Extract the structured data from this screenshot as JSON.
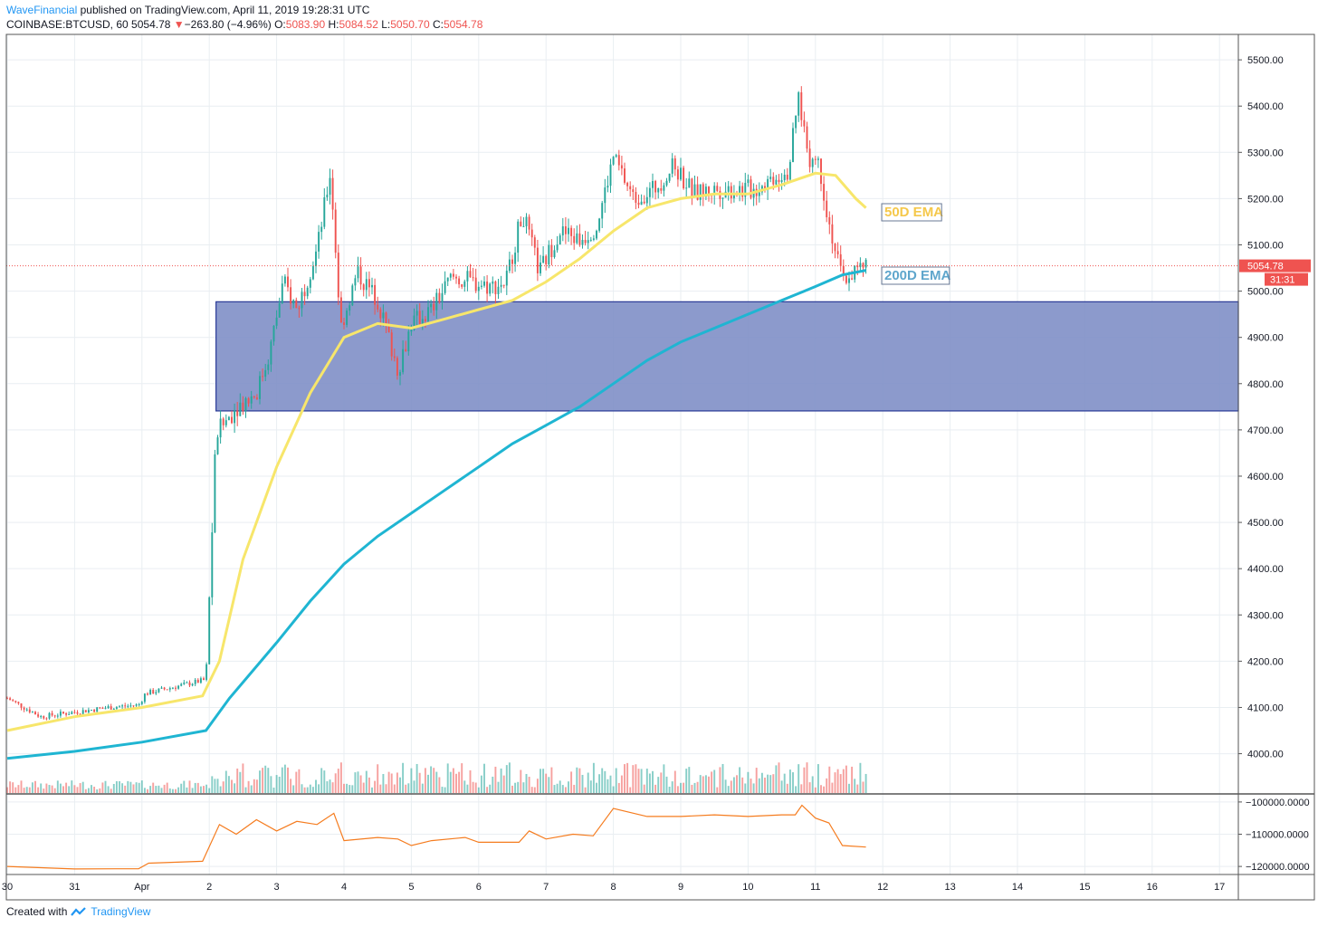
{
  "header": {
    "author": "WaveFinancial",
    "published_text": "published on TradingView.com, April 11, 2019 19:28:31 UTC",
    "symbol": "COINBASE:BTCUSD, 60",
    "last": "5054.78",
    "arrow": "▼",
    "change": "−263.80 (−4.96%)",
    "o_label": "O:",
    "o_value": "5083.90",
    "h_label": "H:",
    "h_value": "5084.52",
    "l_label": "L:",
    "l_value": "5050.70",
    "c_label": "C:",
    "c_value": "5054.78"
  },
  "footer": {
    "created_with": "Created with",
    "brand": "TradingView"
  },
  "colors": {
    "up": "#26a69a",
    "down": "#ef5350",
    "ema50": "#f7e66b",
    "ema200": "#1fb5d2",
    "zone_fill": "#7f8fc6",
    "zone_stroke": "#2a3a96",
    "indicator": "#f57c1f",
    "grid": "#e9eef2",
    "price_line": "#ef5350"
  },
  "chart_data": {
    "type": "candlestick",
    "symbol": "COINBASE:BTCUSD",
    "interval": "60",
    "price_axis": {
      "ticks": [
        5500,
        5400,
        5300,
        5200,
        5100,
        5000,
        4900,
        4800,
        4700,
        4600,
        4500,
        4400,
        4300,
        4200,
        4100,
        4000
      ],
      "tick_labels": [
        "5500.00",
        "5400.00",
        "5300.00",
        "5200.00",
        "5100.00",
        "5000.00",
        "4900.00",
        "4800.00",
        "4700.00",
        "4600.00",
        "4500.00",
        "4400.00",
        "4300.00",
        "4200.00",
        "4100.00",
        "4000.00"
      ],
      "range": [
        3915,
        5555
      ]
    },
    "time_axis": {
      "labels": [
        "30",
        "31",
        "Apr",
        "2",
        "3",
        "4",
        "5",
        "6",
        "7",
        "8",
        "9",
        "10",
        "11",
        "12",
        "13",
        "14",
        "15",
        "16",
        "17"
      ],
      "day_index": [
        0,
        1,
        2,
        3,
        4,
        5,
        6,
        7,
        8,
        9,
        10,
        11,
        12,
        13,
        14,
        15,
        16,
        17,
        18
      ],
      "range": [
        0,
        18.8
      ]
    },
    "close_path": [
      [
        0.0,
        4120
      ],
      [
        0.5,
        4080
      ],
      [
        1.0,
        4090
      ],
      [
        1.5,
        4100
      ],
      [
        1.95,
        4105
      ],
      [
        2.05,
        4130
      ],
      [
        2.5,
        4145
      ],
      [
        2.95,
        4160
      ],
      [
        3.1,
        4690
      ],
      [
        3.4,
        4750
      ],
      [
        3.7,
        4780
      ],
      [
        3.9,
        4870
      ],
      [
        4.1,
        5020
      ],
      [
        4.3,
        4960
      ],
      [
        4.6,
        5090
      ],
      [
        4.8,
        5260
      ],
      [
        4.95,
        4920
      ],
      [
        5.2,
        5040
      ],
      [
        5.5,
        4980
      ],
      [
        5.8,
        4830
      ],
      [
        6.0,
        4930
      ],
      [
        6.3,
        4960
      ],
      [
        6.6,
        5030
      ],
      [
        6.9,
        5020
      ],
      [
        7.2,
        5010
      ],
      [
        7.4,
        5020
      ],
      [
        7.65,
        5170
      ],
      [
        7.9,
        5040
      ],
      [
        8.2,
        5130
      ],
      [
        8.5,
        5110
      ],
      [
        8.75,
        5140
      ],
      [
        9.0,
        5290
      ],
      [
        9.3,
        5200
      ],
      [
        9.6,
        5220
      ],
      [
        9.9,
        5270
      ],
      [
        10.2,
        5210
      ],
      [
        10.5,
        5220
      ],
      [
        10.8,
        5220
      ],
      [
        11.1,
        5220
      ],
      [
        11.4,
        5250
      ],
      [
        11.6,
        5260
      ],
      [
        11.75,
        5420
      ],
      [
        11.9,
        5290
      ],
      [
        12.05,
        5280
      ],
      [
        12.2,
        5150
      ],
      [
        12.4,
        5020
      ],
      [
        12.55,
        5040
      ],
      [
        12.75,
        5055
      ]
    ],
    "ema50": [
      [
        0.0,
        4050
      ],
      [
        1.0,
        4080
      ],
      [
        2.0,
        4100
      ],
      [
        2.9,
        4125
      ],
      [
        3.15,
        4200
      ],
      [
        3.5,
        4420
      ],
      [
        4.0,
        4620
      ],
      [
        4.5,
        4780
      ],
      [
        5.0,
        4900
      ],
      [
        5.5,
        4930
      ],
      [
        6.0,
        4920
      ],
      [
        6.5,
        4940
      ],
      [
        7.0,
        4960
      ],
      [
        7.5,
        4980
      ],
      [
        8.0,
        5020
      ],
      [
        8.5,
        5070
      ],
      [
        9.0,
        5130
      ],
      [
        9.5,
        5180
      ],
      [
        10.0,
        5200
      ],
      [
        10.5,
        5210
      ],
      [
        11.0,
        5210
      ],
      [
        11.5,
        5230
      ],
      [
        12.0,
        5255
      ],
      [
        12.3,
        5250
      ],
      [
        12.6,
        5200
      ],
      [
        12.75,
        5180
      ]
    ],
    "ema200": [
      [
        0.0,
        3990
      ],
      [
        1.0,
        4005
      ],
      [
        2.0,
        4025
      ],
      [
        2.95,
        4050
      ],
      [
        3.3,
        4120
      ],
      [
        4.0,
        4240
      ],
      [
        4.5,
        4330
      ],
      [
        5.0,
        4410
      ],
      [
        5.5,
        4470
      ],
      [
        6.0,
        4520
      ],
      [
        6.5,
        4570
      ],
      [
        7.0,
        4620
      ],
      [
        7.5,
        4670
      ],
      [
        8.0,
        4710
      ],
      [
        8.5,
        4750
      ],
      [
        9.0,
        4800
      ],
      [
        9.5,
        4850
      ],
      [
        10.0,
        4890
      ],
      [
        10.5,
        4920
      ],
      [
        11.0,
        4950
      ],
      [
        11.5,
        4980
      ],
      [
        12.0,
        5010
      ],
      [
        12.4,
        5035
      ],
      [
        12.75,
        5045
      ]
    ],
    "zone": {
      "top": 4977,
      "bottom": 4741,
      "from_day": 3.1
    },
    "labels": {
      "ema50": "50D EMA",
      "ema200": "200D EMA"
    },
    "last_price": {
      "value": 5054.78,
      "label": "5054.78",
      "countdown": "31:31"
    },
    "indicator": {
      "tick_labels": [
        "−100000.0000",
        "−110000.0000",
        "−120000.0000"
      ],
      "ticks": [
        -100000,
        -110000,
        -120000
      ],
      "range": [
        -122500,
        -97500
      ],
      "values": [
        [
          0.0,
          -120000
        ],
        [
          1.0,
          -120800
        ],
        [
          1.95,
          -120700
        ],
        [
          2.1,
          -119000
        ],
        [
          2.9,
          -118400
        ],
        [
          3.15,
          -107000
        ],
        [
          3.4,
          -110000
        ],
        [
          3.7,
          -105500
        ],
        [
          4.0,
          -109000
        ],
        [
          4.3,
          -106000
        ],
        [
          4.6,
          -107000
        ],
        [
          4.85,
          -103500
        ],
        [
          5.0,
          -112000
        ],
        [
          5.5,
          -111000
        ],
        [
          5.8,
          -111500
        ],
        [
          6.0,
          -113500
        ],
        [
          6.3,
          -112000
        ],
        [
          6.8,
          -111000
        ],
        [
          7.0,
          -112500
        ],
        [
          7.6,
          -112500
        ],
        [
          7.75,
          -109000
        ],
        [
          8.0,
          -111500
        ],
        [
          8.4,
          -110000
        ],
        [
          8.7,
          -110500
        ],
        [
          9.0,
          -102000
        ],
        [
          9.5,
          -104500
        ],
        [
          10.0,
          -104500
        ],
        [
          10.5,
          -104000
        ],
        [
          11.0,
          -104500
        ],
        [
          11.5,
          -104000
        ],
        [
          11.7,
          -104000
        ],
        [
          11.8,
          -101000
        ],
        [
          12.0,
          -105000
        ],
        [
          12.2,
          -106500
        ],
        [
          12.4,
          -113500
        ],
        [
          12.75,
          -114000
        ]
      ]
    }
  }
}
